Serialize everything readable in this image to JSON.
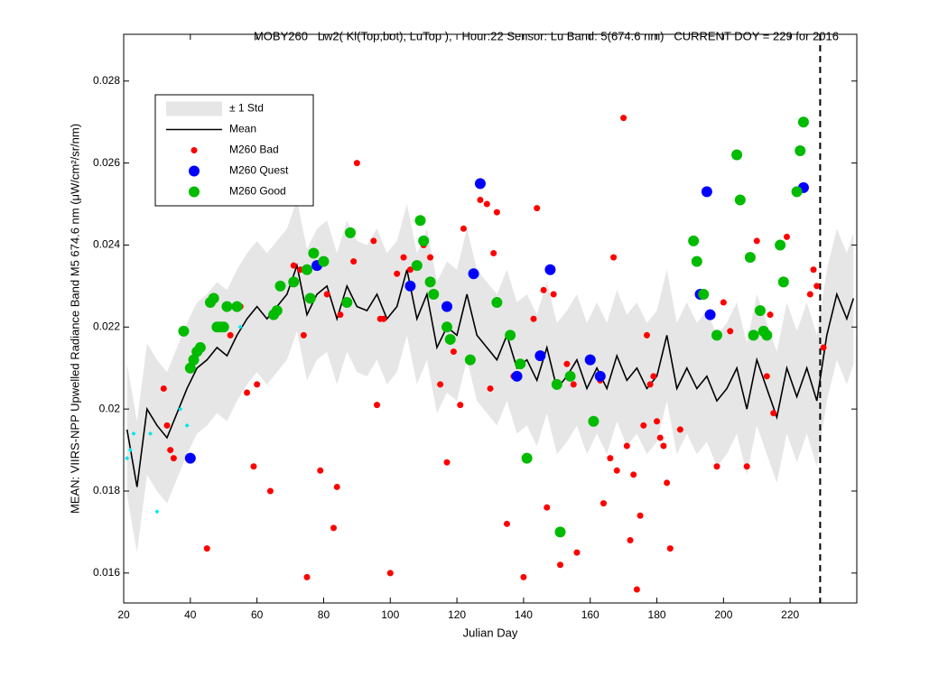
{
  "chart_data": {
    "type": "scatter",
    "title": "MOBY260   Lw2( Kl(Top,bot), LuTop ),   Hour:22 Sensor: Lu Band: 5(674.6 nm)   CURRENT DOY = 229 for 2016",
    "x_label": "Julian Day",
    "y_label": "MEAN: VIIRS-NPP Upwelled Radiance Band M5 674.6 nm (μW/cm²/sr/nm)",
    "xlim": [
      20,
      240
    ],
    "ylim": [
      0.01527,
      0.02914
    ],
    "xticks": [
      20,
      40,
      60,
      80,
      100,
      120,
      140,
      160,
      180,
      200,
      220
    ],
    "yticks": [
      0.016,
      0.018,
      0.02,
      0.022,
      0.024,
      0.026,
      0.028
    ],
    "vline_x": 229,
    "legend": "upper left",
    "band": {
      "name": "± 1 Std",
      "color": "#e6e6e6",
      "upper": [
        0.0211,
        0.0197,
        0.0216,
        0.0212,
        0.0209,
        0.0215,
        0.0221,
        0.0226,
        0.0228,
        0.0231,
        0.0229,
        0.0234,
        0.0238,
        0.0241,
        0.0238,
        0.0241,
        0.0244,
        0.0251,
        0.0239,
        0.0244,
        0.0246,
        0.0238,
        0.0246,
        0.0241,
        0.024,
        0.0244,
        0.0238,
        0.0241,
        0.025,
        0.0238,
        0.0244,
        0.0231,
        0.0236,
        0.0234,
        0.0244,
        0.0234,
        0.0231,
        0.0228,
        0.0234,
        0.0226,
        0.0228,
        0.0223,
        0.0231,
        0.0221,
        0.0224,
        0.0228,
        0.0221,
        0.0226,
        0.0221,
        0.0229,
        0.0223,
        0.0226,
        0.0221,
        0.0224,
        0.0234,
        0.0221,
        0.0226,
        0.0221,
        0.0224,
        0.0218,
        0.0221,
        0.0226,
        0.0216,
        0.0228,
        0.0221,
        0.0214,
        0.0226,
        0.0219,
        0.0226,
        0.0218,
        0.0234,
        0.0244,
        0.0238,
        0.0243
      ],
      "lower": [
        0.0179,
        0.0165,
        0.0184,
        0.018,
        0.0177,
        0.0183,
        0.0189,
        0.0194,
        0.0196,
        0.0199,
        0.0197,
        0.0202,
        0.0206,
        0.0209,
        0.0206,
        0.0209,
        0.0212,
        0.0219,
        0.0207,
        0.0212,
        0.0214,
        0.0206,
        0.0214,
        0.0209,
        0.0208,
        0.0212,
        0.0206,
        0.0209,
        0.0218,
        0.0206,
        0.0212,
        0.0199,
        0.0204,
        0.0202,
        0.0212,
        0.0202,
        0.0199,
        0.0196,
        0.0202,
        0.0194,
        0.0196,
        0.0191,
        0.0199,
        0.0189,
        0.0192,
        0.0196,
        0.0189,
        0.0194,
        0.0189,
        0.0197,
        0.0191,
        0.0194,
        0.0189,
        0.0192,
        0.0202,
        0.0189,
        0.0194,
        0.0189,
        0.0192,
        0.0186,
        0.0189,
        0.0194,
        0.0184,
        0.0196,
        0.0189,
        0.0182,
        0.0194,
        0.0187,
        0.0194,
        0.0186,
        0.0202,
        0.0212,
        0.0206,
        0.0211
      ]
    },
    "mean": {
      "name": "Mean",
      "color": "#000000",
      "x": [
        21,
        24,
        27,
        30,
        33,
        36,
        39,
        42,
        45,
        48,
        51,
        54,
        57,
        60,
        63,
        66,
        69,
        72,
        75,
        78,
        81,
        84,
        87,
        90,
        93,
        96,
        99,
        102,
        105,
        108,
        111,
        114,
        117,
        120,
        123,
        126,
        129,
        132,
        135,
        138,
        141,
        144,
        147,
        150,
        153,
        156,
        159,
        162,
        165,
        168,
        171,
        174,
        177,
        180,
        183,
        186,
        189,
        192,
        195,
        198,
        201,
        204,
        207,
        210,
        213,
        216,
        219,
        222,
        225,
        228,
        231,
        234,
        237,
        239
      ],
      "values": [
        0.0195,
        0.0181,
        0.02,
        0.0196,
        0.0193,
        0.0199,
        0.0205,
        0.021,
        0.0212,
        0.0215,
        0.0213,
        0.0218,
        0.0222,
        0.0225,
        0.0222,
        0.0225,
        0.0228,
        0.0235,
        0.0223,
        0.0228,
        0.023,
        0.0222,
        0.023,
        0.0225,
        0.0224,
        0.0228,
        0.0222,
        0.0225,
        0.0234,
        0.0222,
        0.0228,
        0.0215,
        0.022,
        0.0218,
        0.0228,
        0.0218,
        0.0215,
        0.0212,
        0.0218,
        0.021,
        0.0212,
        0.0207,
        0.0215,
        0.0205,
        0.0208,
        0.0212,
        0.0205,
        0.021,
        0.0205,
        0.0213,
        0.0207,
        0.021,
        0.0205,
        0.0208,
        0.0218,
        0.0205,
        0.021,
        0.0205,
        0.0208,
        0.0202,
        0.0205,
        0.021,
        0.02,
        0.0212,
        0.0205,
        0.0198,
        0.021,
        0.0203,
        0.021,
        0.0202,
        0.0218,
        0.0228,
        0.0222,
        0.0227
      ]
    },
    "series": [
      {
        "name": "M260 Bad",
        "color": "#ff0000",
        "size": 3.5,
        "x": [
          32,
          33,
          34,
          35,
          45,
          52,
          55,
          57,
          59,
          60,
          64,
          71,
          73,
          74,
          75,
          79,
          81,
          83,
          84,
          85,
          89,
          90,
          95,
          96,
          97,
          98,
          100,
          102,
          104,
          106,
          110,
          112,
          115,
          117,
          119,
          121,
          122,
          127,
          129,
          130,
          131,
          132,
          135,
          137,
          140,
          143,
          144,
          146,
          147,
          149,
          151,
          153,
          155,
          156,
          163,
          164,
          166,
          167,
          168,
          170,
          171,
          172,
          173,
          174,
          175,
          176,
          177,
          178,
          179,
          180,
          181,
          182,
          183,
          184,
          187,
          198,
          200,
          202,
          207,
          210,
          213,
          214,
          215,
          219,
          226,
          227,
          228,
          230
        ],
        "values": [
          0.0205,
          0.0196,
          0.019,
          0.0188,
          0.0166,
          0.0218,
          0.0225,
          0.0204,
          0.0186,
          0.0206,
          0.018,
          0.0235,
          0.0234,
          0.0218,
          0.0159,
          0.0185,
          0.0228,
          0.0171,
          0.0181,
          0.0223,
          0.0236,
          0.026,
          0.0241,
          0.0201,
          0.0222,
          0.0222,
          0.016,
          0.0233,
          0.0237,
          0.0234,
          0.024,
          0.0237,
          0.0206,
          0.0187,
          0.0214,
          0.0201,
          0.0244,
          0.0251,
          0.025,
          0.0205,
          0.0238,
          0.0248,
          0.0172,
          0.0208,
          0.0159,
          0.0222,
          0.0249,
          0.0229,
          0.0176,
          0.0228,
          0.0162,
          0.0211,
          0.0206,
          0.0165,
          0.0207,
          0.0177,
          0.0188,
          0.0237,
          0.0185,
          0.0271,
          0.0191,
          0.0168,
          0.0184,
          0.0156,
          0.0174,
          0.0196,
          0.0218,
          0.0206,
          0.0208,
          0.0197,
          0.0193,
          0.0191,
          0.0182,
          0.0166,
          0.0195,
          0.0186,
          0.0226,
          0.0219,
          0.0186,
          0.0241,
          0.0208,
          0.0223,
          0.0199,
          0.0242,
          0.0228,
          0.0234,
          0.023,
          0.0215
        ]
      },
      {
        "name": "M260 Quest",
        "color": "#0000ff",
        "size": 6,
        "x": [
          40,
          78,
          106,
          117,
          125,
          127,
          138,
          145,
          148,
          160,
          163,
          193,
          195,
          196,
          224
        ],
        "values": [
          0.0188,
          0.0235,
          0.023,
          0.0225,
          0.0233,
          0.0255,
          0.0208,
          0.0213,
          0.0234,
          0.0212,
          0.0208,
          0.0228,
          0.0253,
          0.0223,
          0.0254
        ]
      },
      {
        "name": "M260 Good",
        "color": "#00bb00",
        "size": 6,
        "x": [
          38,
          40,
          41,
          42,
          43,
          46,
          47,
          48,
          49,
          50,
          51,
          54,
          65,
          66,
          67,
          71,
          75,
          76,
          77,
          80,
          87,
          88,
          108,
          109,
          110,
          112,
          113,
          117,
          118,
          124,
          132,
          136,
          139,
          141,
          150,
          151,
          154,
          161,
          191,
          192,
          194,
          198,
          204,
          205,
          208,
          209,
          211,
          212,
          213,
          217,
          218,
          222,
          223,
          224
        ],
        "values": [
          0.0219,
          0.021,
          0.0212,
          0.0214,
          0.0215,
          0.0226,
          0.0227,
          0.022,
          0.022,
          0.022,
          0.0225,
          0.0225,
          0.0223,
          0.0224,
          0.023,
          0.0231,
          0.0234,
          0.0227,
          0.0238,
          0.0236,
          0.0226,
          0.0243,
          0.0235,
          0.0246,
          0.0241,
          0.0231,
          0.0228,
          0.022,
          0.0217,
          0.0212,
          0.0226,
          0.0218,
          0.0211,
          0.0188,
          0.0206,
          0.017,
          0.0208,
          0.0197,
          0.0241,
          0.0236,
          0.0228,
          0.0218,
          0.0262,
          0.0251,
          0.0237,
          0.0218,
          0.0224,
          0.0219,
          0.0218,
          0.024,
          0.0231,
          0.0253,
          0.0263,
          0.027
        ]
      },
      {
        "color": "#00e5ee",
        "size": 2.5,
        "marker": "diamond",
        "x": [
          21,
          22,
          23,
          28,
          30,
          37,
          39,
          55
        ],
        "values": [
          0.0188,
          0.019,
          0.0194,
          0.0194,
          0.0175,
          0.02,
          0.0196,
          0.022
        ]
      }
    ]
  }
}
